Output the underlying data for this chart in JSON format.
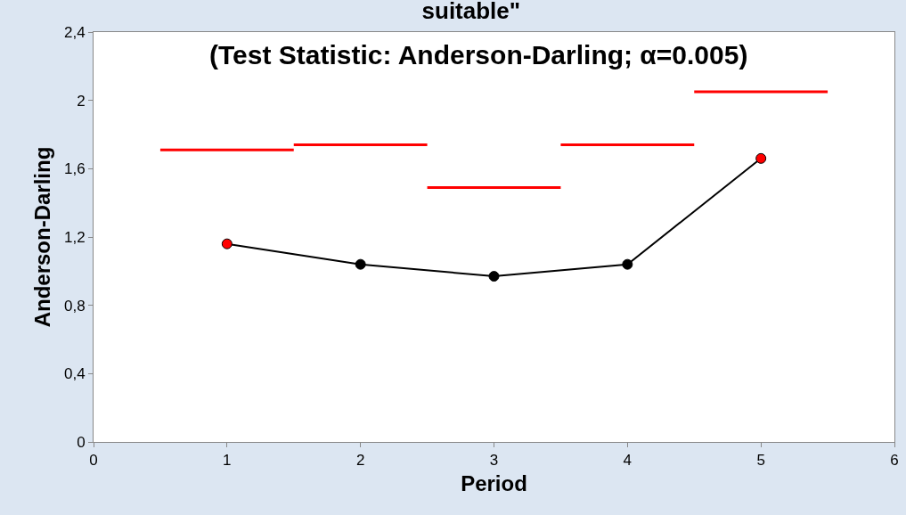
{
  "chart_data": {
    "type": "line",
    "title": "suitable\"",
    "subtitle": "(Test Statistic: Anderson-Darling; α=0.005)",
    "xlabel": "Period",
    "ylabel": "Anderson-Darling",
    "x": [
      1,
      2,
      3,
      4,
      5
    ],
    "series": [
      {
        "color": "#000000",
        "colors": [
          "#ff0000",
          "#000000",
          "#000000",
          "#000000",
          "#ff0000"
        ],
        "values": [
          1.16,
          1.04,
          0.97,
          1.04,
          1.66
        ],
        "marker": "circle"
      },
      {
        "color": "#ff0000",
        "x": [
          0.5,
          1.5
        ],
        "values": [
          1.71,
          1.71
        ],
        "marker": "none"
      },
      {
        "color": "#ff0000",
        "x": [
          1.5,
          2.5
        ],
        "values": [
          1.74,
          1.74
        ],
        "marker": "none"
      },
      {
        "color": "#ff0000",
        "x": [
          2.5,
          3.5
        ],
        "values": [
          1.49,
          1.49
        ],
        "marker": "none"
      },
      {
        "color": "#ff0000",
        "x": [
          3.5,
          4.5
        ],
        "values": [
          1.74,
          1.74
        ],
        "marker": "none"
      },
      {
        "color": "#ff0000",
        "x": [
          4.5,
          5.5
        ],
        "values": [
          2.05,
          2.05
        ],
        "marker": "none"
      }
    ],
    "xlim": [
      0,
      6
    ],
    "xticks": [
      0,
      1,
      2,
      3,
      4,
      5,
      6
    ],
    "ylim": [
      0,
      2.4
    ],
    "yticks": [
      0,
      {
        "value": 0.4,
        "label": "0,4"
      },
      {
        "value": 0.8,
        "label": "0,8"
      },
      {
        "value": 1.2,
        "label": "1,2"
      },
      {
        "value": 1.6,
        "label": "1,6"
      },
      2,
      {
        "value": 2.4,
        "label": "2,4"
      }
    ],
    "legend": false
  }
}
